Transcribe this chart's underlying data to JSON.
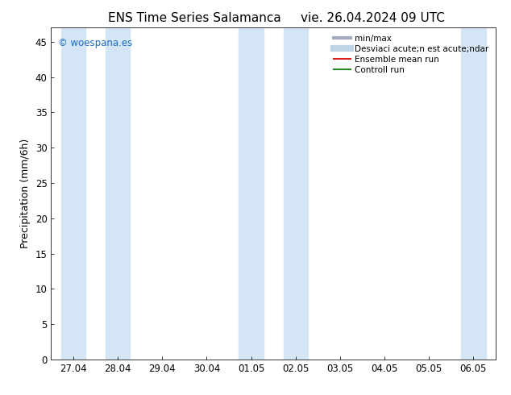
{
  "title_left": "ENS Time Series Salamanca",
  "title_right": "vie. 26.04.2024 09 UTC",
  "ylabel": "Precipitation (mm/6h)",
  "watermark": "© woespana.es",
  "watermark_color": "#1a6ac4",
  "ylim": [
    0,
    47
  ],
  "yticks": [
    0,
    5,
    10,
    15,
    20,
    25,
    30,
    35,
    40,
    45
  ],
  "xtick_labels": [
    "27.04",
    "28.04",
    "29.04",
    "30.04",
    "01.05",
    "02.05",
    "03.05",
    "04.05",
    "05.05",
    "06.05"
  ],
  "shaded_bands_x": [
    0,
    1,
    4,
    5,
    9
  ],
  "band_color": "#d4e6f5",
  "legend_entries": [
    {
      "label": "min/max",
      "color": "#a0aabb",
      "lw": 3,
      "type": "line"
    },
    {
      "label": "Desviaci acute;n est acute;ndar",
      "color": "#c0d4e8",
      "lw": 6,
      "type": "line"
    },
    {
      "label": "Ensemble mean run",
      "color": "#dd2222",
      "lw": 1.5,
      "type": "line"
    },
    {
      "label": "Controll run",
      "color": "#228822",
      "lw": 1.5,
      "type": "line"
    }
  ],
  "bg_color": "#ffffff",
  "plot_bg_color": "#ffffff",
  "tick_label_fontsize": 8.5,
  "axis_label_fontsize": 9,
  "title_fontsize": 11
}
